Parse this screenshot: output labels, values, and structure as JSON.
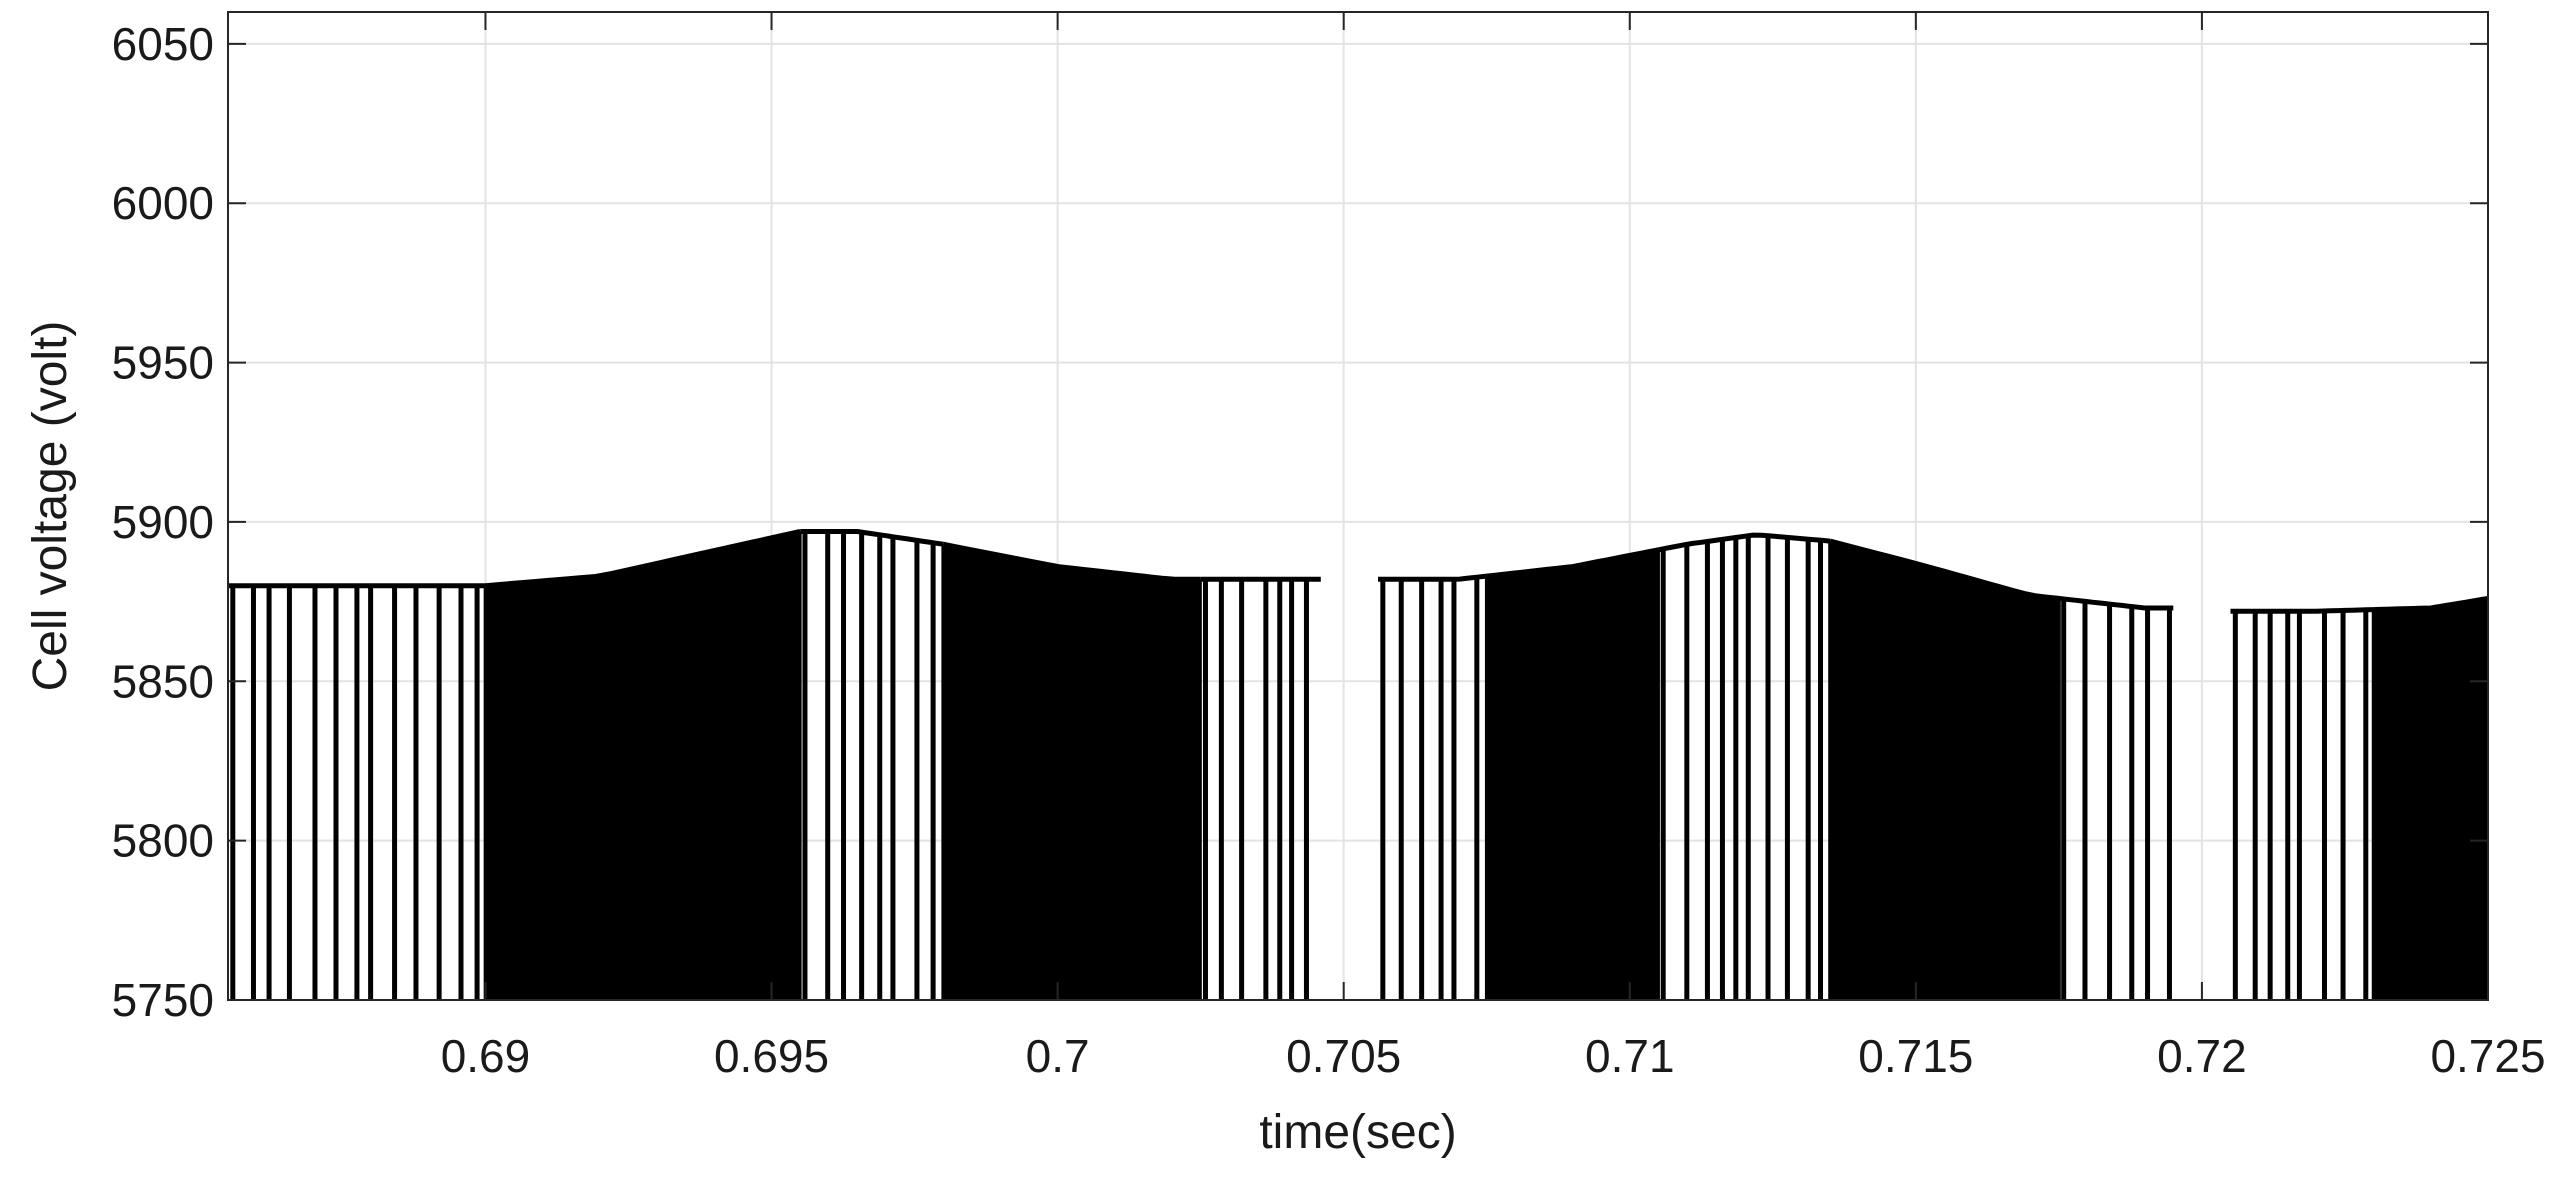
{
  "chart_data": {
    "type": "line",
    "title": "",
    "xlabel": "time(sec)",
    "ylabel": "Cell voltage (volt)",
    "xlim": [
      0.6855,
      0.725
    ],
    "ylim": [
      5750,
      6060
    ],
    "x_ticks": [
      0.69,
      0.695,
      0.7,
      0.705,
      0.71,
      0.715,
      0.72,
      0.725
    ],
    "x_tick_labels": [
      "0.69",
      "0.695",
      "0.7",
      "0.705",
      "0.71",
      "0.715",
      "0.72",
      "0.725"
    ],
    "y_ticks": [
      5750,
      5800,
      5850,
      5900,
      5950,
      6000,
      6050
    ],
    "y_tick_labels": [
      "5750",
      "5800",
      "5850",
      "5900",
      "5950",
      "6000",
      "6050"
    ],
    "grid": true,
    "legend": "none",
    "line_color": "#000000",
    "description_of_signal": "",
    "series": [
      {
        "envelope_x": [
          0.6855,
          0.688,
          0.69,
          0.692,
          0.694,
          0.6955,
          0.6965,
          0.698,
          0.7,
          0.702,
          0.704,
          0.7045,
          0.7056,
          0.707,
          0.709,
          0.711,
          0.7122,
          0.7135,
          0.715,
          0.717,
          0.719,
          0.7195,
          0.7205,
          0.722,
          0.724,
          0.725
        ],
        "envelope_y": [
          5880,
          5880,
          5880,
          5883,
          5891,
          5897,
          5897,
          5893,
          5886,
          5882,
          5882,
          5882,
          5882,
          5882,
          5886,
          5893,
          5896,
          5894,
          5887,
          5877,
          5873,
          5873,
          5872,
          5872,
          5873,
          5876
        ],
        "baseline": 5750,
        "switching_density": [
          {
            "from": 0.6855,
            "to": 0.69,
            "level": "sparse"
          },
          {
            "from": 0.69,
            "to": 0.6955,
            "level": "dense"
          },
          {
            "from": 0.6955,
            "to": 0.698,
            "level": "sparse"
          },
          {
            "from": 0.698,
            "to": 0.7025,
            "level": "dense"
          },
          {
            "from": 0.7025,
            "to": 0.7046,
            "level": "sparse"
          },
          {
            "from": 0.7056,
            "to": 0.7075,
            "level": "sparse"
          },
          {
            "from": 0.7075,
            "to": 0.7105,
            "level": "dense"
          },
          {
            "from": 0.7105,
            "to": 0.7135,
            "level": "sparse"
          },
          {
            "from": 0.7135,
            "to": 0.7175,
            "level": "dense"
          },
          {
            "from": 0.7175,
            "to": 0.7195,
            "level": "sparse"
          },
          {
            "from": 0.7205,
            "to": 0.723,
            "level": "sparse"
          },
          {
            "from": 0.723,
            "to": 0.725,
            "level": "dense"
          }
        ]
      }
    ]
  }
}
